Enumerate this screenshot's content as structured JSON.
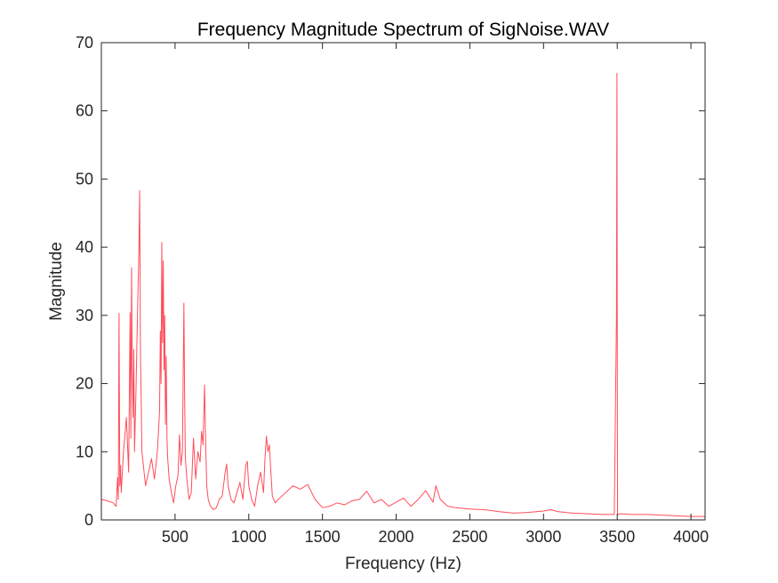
{
  "chart_data": {
    "type": "line",
    "title": "Frequency Magnitude Spectrum of SigNoise.WAV",
    "xlabel": "Frequency (Hz)",
    "ylabel": "Magnitude",
    "xlim": [
      0,
      4096
    ],
    "ylim": [
      0,
      70
    ],
    "xticks": [
      500,
      1000,
      1500,
      2000,
      2500,
      3000,
      3500,
      4000
    ],
    "xtick_labels": [
      "500",
      "1000",
      "1500",
      "2000",
      "2500",
      "3000",
      "3500",
      "4000"
    ],
    "yticks": [
      0,
      10,
      20,
      30,
      40,
      50,
      60,
      70
    ],
    "ytick_labels": [
      "0",
      "10",
      "20",
      "30",
      "40",
      "50",
      "60",
      "70"
    ],
    "line_color": "#ff4d5a",
    "series": [
      {
        "name": "Magnitude",
        "x": [
          0,
          40,
          80,
          100,
          110,
          115,
          120,
          125,
          130,
          135,
          150,
          170,
          185,
          195,
          200,
          205,
          210,
          215,
          220,
          225,
          235,
          245,
          255,
          260,
          265,
          270,
          275,
          285,
          300,
          320,
          340,
          360,
          380,
          395,
          400,
          405,
          410,
          415,
          420,
          425,
          430,
          435,
          440,
          445,
          450,
          460,
          475,
          490,
          505,
          520,
          530,
          540,
          550,
          560,
          565,
          570,
          580,
          595,
          610,
          625,
          640,
          655,
          670,
          680,
          690,
          700,
          705,
          710,
          715,
          725,
          740,
          760,
          780,
          800,
          820,
          840,
          850,
          860,
          880,
          900,
          920,
          940,
          960,
          980,
          990,
          1000,
          1020,
          1040,
          1060,
          1080,
          1100,
          1110,
          1120,
          1130,
          1140,
          1150,
          1160,
          1180,
          1200,
          1250,
          1300,
          1350,
          1400,
          1450,
          1500,
          1550,
          1600,
          1650,
          1700,
          1750,
          1800,
          1850,
          1900,
          1950,
          2000,
          2050,
          2100,
          2150,
          2200,
          2250,
          2270,
          2300,
          2350,
          2400,
          2500,
          2600,
          2700,
          2800,
          2900,
          3000,
          3050,
          3100,
          3200,
          3300,
          3400,
          3480,
          3495,
          3498,
          3500,
          3502,
          3505,
          3520,
          3600,
          3700,
          3800,
          3900,
          4000,
          4096
        ],
        "values": [
          3.0,
          2.8,
          2.5,
          2.0,
          6.2,
          3.0,
          30.3,
          5.0,
          8.0,
          4.0,
          10.0,
          15.0,
          7.0,
          30.4,
          12.0,
          37.0,
          22.0,
          15.0,
          25.0,
          10.0,
          19.0,
          30.0,
          40.0,
          48.3,
          25.0,
          18.0,
          10.0,
          8.0,
          5.0,
          7.0,
          9.0,
          6.0,
          10.0,
          16.0,
          27.7,
          20.0,
          40.7,
          26.0,
          38.0,
          22.0,
          30.0,
          14.0,
          24.0,
          12.0,
          9.0,
          6.0,
          4.0,
          2.5,
          5.0,
          6.5,
          12.5,
          8.0,
          10.0,
          31.8,
          18.0,
          9.0,
          6.0,
          3.0,
          4.0,
          12.0,
          6.0,
          10.0,
          8.5,
          13.0,
          11.0,
          19.8,
          14.0,
          9.0,
          5.0,
          3.0,
          2.0,
          1.5,
          1.8,
          3.0,
          3.5,
          7.0,
          8.2,
          5.0,
          3.0,
          2.5,
          4.0,
          5.5,
          3.0,
          8.0,
          8.6,
          5.0,
          3.0,
          2.0,
          5.0,
          7.0,
          4.0,
          9.0,
          12.3,
          10.0,
          11.0,
          7.0,
          3.5,
          2.5,
          3.0,
          4.0,
          5.0,
          4.5,
          5.2,
          3.0,
          1.8,
          2.0,
          2.5,
          2.2,
          2.8,
          3.0,
          4.2,
          2.5,
          3.0,
          2.0,
          2.6,
          3.2,
          2.0,
          3.0,
          4.3,
          2.6,
          5.0,
          3.0,
          2.0,
          1.8,
          1.6,
          1.5,
          1.2,
          1.0,
          1.1,
          1.3,
          1.5,
          1.2,
          1.0,
          0.9,
          0.8,
          0.8,
          30.0,
          65.5,
          30.0,
          0.8,
          0.8,
          0.9,
          0.8,
          0.8,
          0.7,
          0.6,
          0.5,
          0.5
        ]
      }
    ]
  }
}
